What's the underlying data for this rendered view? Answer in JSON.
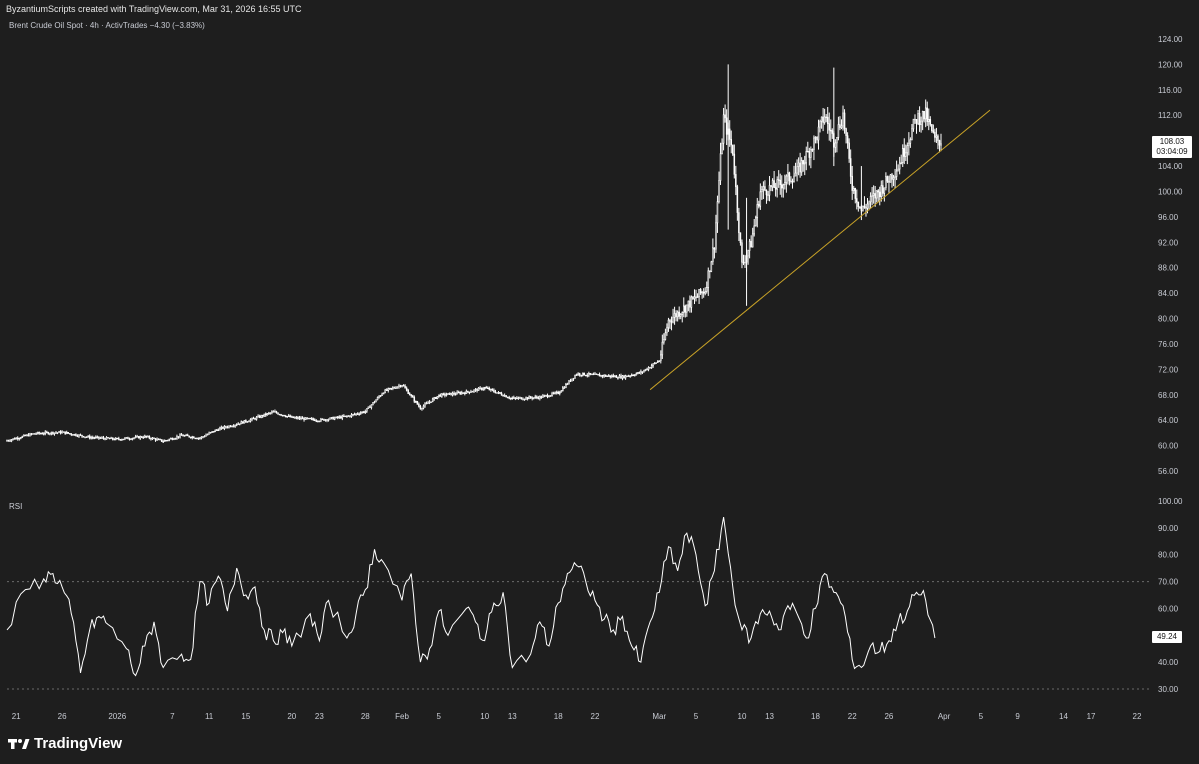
{
  "header": {
    "credit": "ByzantiumScripts created with TradingView.com, Mar 31, 2026 16:55 UTC",
    "title": "Brent Crude Oil Spot · 4h · ActivTrades",
    "change": "−4.30 (−3.83%)"
  },
  "price_tag": {
    "value": "108.03",
    "countdown": "03:04:09"
  },
  "rsi": {
    "label": "RSI",
    "value": "49.24"
  },
  "branding": {
    "logo_text": "TradingView"
  },
  "colors": {
    "background": "#1e1e1e",
    "series": "#ffffff",
    "trendline": "#c8a227",
    "grid_dash": "#6b6b6b"
  },
  "chart_data": [
    {
      "type": "candlestick",
      "ylim": [
        56,
        124
      ],
      "y_ticks": [
        "124.00",
        "120.00",
        "116.00",
        "112.00",
        "108.00",
        "104.00",
        "100.00",
        "96.00",
        "92.00",
        "88.00",
        "84.00",
        "80.00",
        "76.00",
        "72.00",
        "68.00",
        "64.00",
        "60.00",
        "56.00"
      ],
      "x_ticks": [
        "21",
        "26",
        "2026",
        "7",
        "11",
        "15",
        "20",
        "23",
        "28",
        "Feb",
        "5",
        "10",
        "13",
        "18",
        "22",
        "Mar",
        "5",
        "10",
        "13",
        "18",
        "22",
        "26",
        "Apr",
        "5",
        "9",
        "14",
        "17",
        "22"
      ],
      "x_tick_dates": [
        "2025-12-21",
        "2025-12-26",
        "2026-01-01",
        "2026-01-07",
        "2026-01-11",
        "2026-01-15",
        "2026-01-20",
        "2026-01-23",
        "2026-01-28",
        "2026-02-01",
        "2026-02-05",
        "2026-02-10",
        "2026-02-13",
        "2026-02-18",
        "2026-02-22",
        "2026-03-01",
        "2026-03-05",
        "2026-03-10",
        "2026-03-13",
        "2026-03-18",
        "2026-03-22",
        "2026-03-26",
        "2026-04-01",
        "2026-04-05",
        "2026-04-09",
        "2026-04-14",
        "2026-04-17",
        "2026-04-22"
      ],
      "series": [
        {
          "name": "Brent Crude Oil Spot",
          "close_points": [
            [
              "2025-12-20",
              60.8
            ],
            [
              "2025-12-23",
              61.9
            ],
            [
              "2025-12-26",
              62.1
            ],
            [
              "2025-12-29",
              61.3
            ],
            [
              "2026-01-01",
              61.0
            ],
            [
              "2026-01-04",
              61.4
            ],
            [
              "2026-01-06",
              60.7
            ],
            [
              "2026-01-08",
              61.6
            ],
            [
              "2026-01-10",
              61.2
            ],
            [
              "2026-01-12",
              62.6
            ],
            [
              "2026-01-14",
              63.4
            ],
            [
              "2026-01-16",
              64.3
            ],
            [
              "2026-01-18",
              65.3
            ],
            [
              "2026-01-20",
              64.4
            ],
            [
              "2026-01-23",
              64.0
            ],
            [
              "2026-01-26",
              64.6
            ],
            [
              "2026-01-28",
              65.4
            ],
            [
              "2026-01-30",
              68.5
            ],
            [
              "2026-02-01",
              69.6
            ],
            [
              "2026-02-03",
              65.9
            ],
            [
              "2026-02-05",
              67.9
            ],
            [
              "2026-02-08",
              68.4
            ],
            [
              "2026-02-10",
              69.1
            ],
            [
              "2026-02-13",
              67.4
            ],
            [
              "2026-02-16",
              67.6
            ],
            [
              "2026-02-18",
              68.3
            ],
            [
              "2026-02-20",
              71.3
            ],
            [
              "2026-02-22",
              71.1
            ],
            [
              "2026-02-25",
              70.8
            ],
            [
              "2026-02-27",
              71.5
            ],
            [
              "2026-03-01",
              73.4
            ],
            [
              "2026-03-02",
              79.7
            ],
            [
              "2026-03-04",
              82.0
            ],
            [
              "2026-03-06",
              84.6
            ],
            [
              "2026-03-07",
              91.8
            ],
            [
              "2026-03-08",
              111.6
            ],
            [
              "2026-03-09",
              106.4
            ],
            [
              "2026-03-10",
              88.4
            ],
            [
              "2026-03-11",
              91.9
            ],
            [
              "2026-03-12",
              100.0
            ],
            [
              "2026-03-14",
              101.0
            ],
            [
              "2026-03-16",
              103.0
            ],
            [
              "2026-03-18",
              108.2
            ],
            [
              "2026-03-19",
              112.0
            ],
            [
              "2026-03-20",
              108.0
            ],
            [
              "2026-03-21",
              112.1
            ],
            [
              "2026-03-22",
              101.0
            ],
            [
              "2026-03-23",
              97.0
            ],
            [
              "2026-03-25",
              100.1
            ],
            [
              "2026-03-27",
              104.0
            ],
            [
              "2026-03-29",
              111.5
            ],
            [
              "2026-03-30",
              112.0
            ],
            [
              "2026-03-31",
              108.0
            ]
          ]
        }
      ],
      "trendline": {
        "from": [
          "2026-02-28",
          68.8
        ],
        "to": [
          "2026-04-06",
          112.8
        ]
      },
      "last_price": 108.03
    },
    {
      "type": "line",
      "title": "RSI",
      "ylim": [
        30,
        100
      ],
      "y_ticks": [
        "100.00",
        "90.00",
        "80.00",
        "70.00",
        "60.00",
        "50.00",
        "40.00",
        "30.00"
      ],
      "bands": [
        70,
        30
      ],
      "series": [
        {
          "name": "RSI",
          "points": [
            [
              "2025-12-20",
              52
            ],
            [
              "2025-12-22",
              67
            ],
            [
              "2025-12-24",
              71
            ],
            [
              "2025-12-25",
              73
            ],
            [
              "2025-12-26",
              68
            ],
            [
              "2025-12-27",
              58
            ],
            [
              "2025-12-28",
              36
            ],
            [
              "2025-12-29",
              52
            ],
            [
              "2025-12-30",
              57
            ],
            [
              "2025-12-31",
              54
            ],
            [
              "2026-01-02",
              45
            ],
            [
              "2026-01-03",
              35
            ],
            [
              "2026-01-04",
              46
            ],
            [
              "2026-01-05",
              55
            ],
            [
              "2026-01-06",
              38
            ],
            [
              "2026-01-08",
              43
            ],
            [
              "2026-01-09",
              41
            ],
            [
              "2026-01-10",
              70
            ],
            [
              "2026-01-11",
              62
            ],
            [
              "2026-01-12",
              72
            ],
            [
              "2026-01-13",
              59
            ],
            [
              "2026-01-14",
              75
            ],
            [
              "2026-01-15",
              65
            ],
            [
              "2026-01-16",
              68
            ],
            [
              "2026-01-17",
              52
            ],
            [
              "2026-01-18",
              48
            ],
            [
              "2026-01-19",
              51
            ],
            [
              "2026-01-20",
              46
            ],
            [
              "2026-01-22",
              58
            ],
            [
              "2026-01-23",
              48
            ],
            [
              "2026-01-24",
              63
            ],
            [
              "2026-01-26",
              49
            ],
            [
              "2026-01-27",
              58
            ],
            [
              "2026-01-28",
              67
            ],
            [
              "2026-01-29",
              82
            ],
            [
              "2026-01-30",
              77
            ],
            [
              "2026-02-01",
              63
            ],
            [
              "2026-02-02",
              73
            ],
            [
              "2026-02-03",
              40
            ],
            [
              "2026-02-04",
              45
            ],
            [
              "2026-02-05",
              59
            ],
            [
              "2026-02-06",
              50
            ],
            [
              "2026-02-08",
              60
            ],
            [
              "2026-02-09",
              55
            ],
            [
              "2026-02-10",
              48
            ],
            [
              "2026-02-11",
              62
            ],
            [
              "2026-02-12",
              66
            ],
            [
              "2026-02-13",
              38
            ],
            [
              "2026-02-15",
              43
            ],
            [
              "2026-02-16",
              55
            ],
            [
              "2026-02-17",
              46
            ],
            [
              "2026-02-18",
              62
            ],
            [
              "2026-02-19",
              73
            ],
            [
              "2026-02-20",
              76
            ],
            [
              "2026-02-21",
              70
            ],
            [
              "2026-02-22",
              63
            ],
            [
              "2026-02-23",
              56
            ],
            [
              "2026-02-24",
              52
            ],
            [
              "2026-02-25",
              57
            ],
            [
              "2026-02-26",
              46
            ],
            [
              "2026-02-27",
              40
            ],
            [
              "2026-02-28",
              55
            ],
            [
              "2026-03-01",
              66
            ],
            [
              "2026-03-02",
              83
            ],
            [
              "2026-03-03",
              74
            ],
            [
              "2026-03-04",
              88
            ],
            [
              "2026-03-05",
              80
            ],
            [
              "2026-03-06",
              61
            ],
            [
              "2026-03-07",
              74
            ],
            [
              "2026-03-08",
              94
            ],
            [
              "2026-03-09",
              68
            ],
            [
              "2026-03-10",
              52
            ],
            [
              "2026-03-11",
              49
            ],
            [
              "2026-03-12",
              58
            ],
            [
              "2026-03-13",
              59
            ],
            [
              "2026-03-14",
              52
            ],
            [
              "2026-03-15",
              61
            ],
            [
              "2026-03-16",
              58
            ],
            [
              "2026-03-17",
              49
            ],
            [
              "2026-03-18",
              60
            ],
            [
              "2026-03-19",
              73
            ],
            [
              "2026-03-20",
              66
            ],
            [
              "2026-03-21",
              61
            ],
            [
              "2026-03-22",
              41
            ],
            [
              "2026-03-23",
              38
            ],
            [
              "2026-03-24",
              46
            ],
            [
              "2026-03-25",
              44
            ],
            [
              "2026-03-26",
              48
            ],
            [
              "2026-03-27",
              55
            ],
            [
              "2026-03-28",
              59
            ],
            [
              "2026-03-29",
              66
            ],
            [
              "2026-03-30",
              63
            ],
            [
              "2026-03-31",
              49
            ]
          ]
        }
      ],
      "last_value": 49.24
    }
  ]
}
